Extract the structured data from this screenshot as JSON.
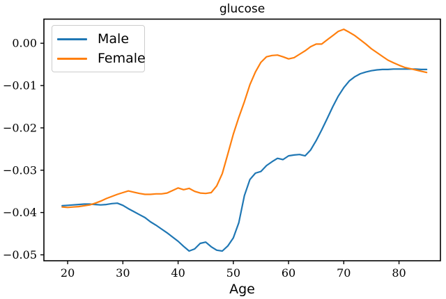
{
  "figure": {
    "title": "glucose",
    "xlabel": "Age"
  },
  "legend": {
    "items": [
      {
        "label": "Male",
        "color": "#1f77b4"
      },
      {
        "label": "Female",
        "color": "#ff7f0e"
      }
    ]
  },
  "chart_data": {
    "type": "line",
    "title": "glucose",
    "xlabel": "Age",
    "ylabel": "",
    "grid": false,
    "legend_position": "upper left",
    "xlim": [
      15.7,
      87.5
    ],
    "ylim": [
      -0.0514,
      0.0057
    ],
    "x_ticks": [
      20,
      30,
      40,
      50,
      60,
      70,
      80
    ],
    "x_tick_labels": [
      "20",
      "30",
      "40",
      "50",
      "60",
      "70",
      "80"
    ],
    "y_ticks": [
      0.0,
      -0.01,
      -0.02,
      -0.03,
      -0.04,
      -0.05
    ],
    "y_tick_labels": [
      "0.00",
      "−0.01",
      "−0.02",
      "−0.03",
      "−0.04",
      "−0.05"
    ],
    "x": [
      19,
      20,
      21,
      22,
      23,
      24,
      25,
      26,
      27,
      28,
      29,
      30,
      31,
      32,
      33,
      34,
      35,
      36,
      37,
      38,
      39,
      40,
      41,
      42,
      43,
      44,
      45,
      46,
      47,
      48,
      49,
      50,
      51,
      52,
      53,
      54,
      55,
      56,
      57,
      58,
      59,
      60,
      61,
      62,
      63,
      64,
      65,
      66,
      67,
      68,
      69,
      70,
      71,
      72,
      73,
      74,
      75,
      76,
      77,
      78,
      79,
      80,
      81,
      82,
      83,
      84,
      85
    ],
    "series": [
      {
        "name": "Male",
        "color": "#1f77b4",
        "values": [
          -0.0384,
          -0.0383,
          -0.0382,
          -0.0381,
          -0.038,
          -0.038,
          -0.0381,
          -0.0382,
          -0.0381,
          -0.0379,
          -0.0378,
          -0.0383,
          -0.0391,
          -0.0398,
          -0.0405,
          -0.0412,
          -0.0422,
          -0.043,
          -0.0439,
          -0.0448,
          -0.0458,
          -0.0468,
          -0.048,
          -0.0491,
          -0.0486,
          -0.0473,
          -0.047,
          -0.0481,
          -0.0489,
          -0.0491,
          -0.0479,
          -0.046,
          -0.0424,
          -0.036,
          -0.0322,
          -0.0307,
          -0.0303,
          -0.0289,
          -0.028,
          -0.0272,
          -0.0275,
          -0.0266,
          -0.0264,
          -0.0263,
          -0.0266,
          -0.0252,
          -0.023,
          -0.0205,
          -0.0178,
          -0.015,
          -0.0125,
          -0.0105,
          -0.0089,
          -0.0079,
          -0.0072,
          -0.0068,
          -0.0065,
          -0.0063,
          -0.0062,
          -0.0062,
          -0.0061,
          -0.0061,
          -0.0061,
          -0.0061,
          -0.0061,
          -0.0062,
          -0.0062
        ]
      },
      {
        "name": "Female",
        "color": "#ff7f0e",
        "values": [
          -0.0387,
          -0.0388,
          -0.0387,
          -0.0386,
          -0.0384,
          -0.0382,
          -0.0378,
          -0.0373,
          -0.0367,
          -0.0362,
          -0.0357,
          -0.0353,
          -0.0349,
          -0.0352,
          -0.0355,
          -0.0357,
          -0.0357,
          -0.0356,
          -0.0356,
          -0.0354,
          -0.0348,
          -0.0342,
          -0.0346,
          -0.0343,
          -0.035,
          -0.0354,
          -0.0355,
          -0.0353,
          -0.0337,
          -0.0308,
          -0.0262,
          -0.0215,
          -0.0175,
          -0.0138,
          -0.0098,
          -0.0068,
          -0.0045,
          -0.0032,
          -0.0029,
          -0.0028,
          -0.0032,
          -0.0037,
          -0.0034,
          -0.0026,
          -0.0018,
          -0.0008,
          -0.0002,
          -0.0002,
          0.0008,
          0.0018,
          0.0028,
          0.0033,
          0.0026,
          0.0018,
          0.0008,
          -0.0002,
          -0.0013,
          -0.0022,
          -0.0031,
          -0.004,
          -0.0046,
          -0.0052,
          -0.0057,
          -0.006,
          -0.0063,
          -0.0066,
          -0.0069
        ]
      }
    ]
  }
}
